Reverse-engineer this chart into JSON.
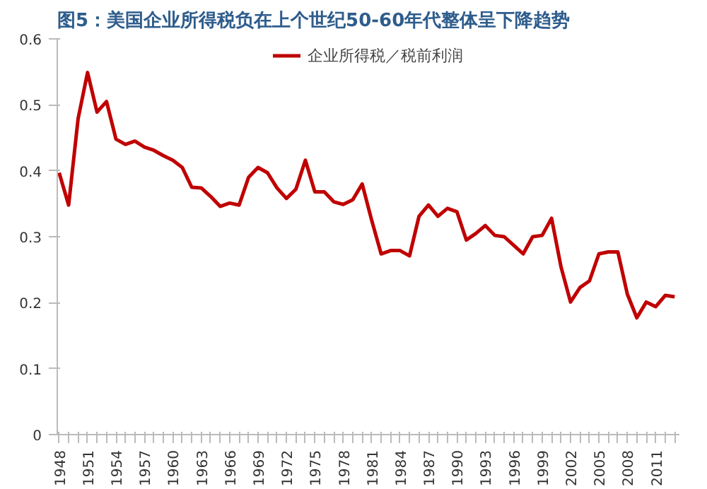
{
  "chart_data": {
    "type": "line",
    "title": "图5：美国企业所得税负在上个世纪50-60年代整体呈下降趋势",
    "categories": [
      "1948",
      null,
      null,
      "1951",
      null,
      null,
      "1954",
      null,
      null,
      "1957",
      null,
      null,
      "1960",
      null,
      null,
      "1963",
      null,
      null,
      "1966",
      null,
      null,
      "1969",
      null,
      null,
      "1972",
      null,
      null,
      "1975",
      null,
      null,
      "1978",
      null,
      null,
      "1981",
      null,
      null,
      "1984",
      null,
      null,
      "1987",
      null,
      null,
      "1990",
      null,
      null,
      "1993",
      null,
      null,
      "1996",
      null,
      null,
      "1999",
      null,
      null,
      "2002",
      null,
      null,
      "2005",
      null,
      null,
      "2008",
      null,
      null,
      "2011",
      null,
      null
    ],
    "series": [
      {
        "name": "企业所得税／税前利润",
        "color": "#c00000",
        "values": [
          0.397,
          0.348,
          0.479,
          0.549,
          0.489,
          0.505,
          0.448,
          0.44,
          0.445,
          0.436,
          0.431,
          0.423,
          0.416,
          0.405,
          0.375,
          0.374,
          0.361,
          0.346,
          0.351,
          0.348,
          0.39,
          0.405,
          0.397,
          0.374,
          0.358,
          0.372,
          0.416,
          0.368,
          0.368,
          0.353,
          0.349,
          0.356,
          0.38,
          0.325,
          0.274,
          0.279,
          0.279,
          0.271,
          0.331,
          0.348,
          0.331,
          0.343,
          0.338,
          0.295,
          0.305,
          0.317,
          0.302,
          0.3,
          0.287,
          0.274,
          0.3,
          0.302,
          0.328,
          0.254,
          0.201,
          0.223,
          0.233,
          0.274,
          0.277,
          0.277,
          0.213,
          0.177,
          0.201,
          0.194,
          0.211,
          0.209
        ]
      }
    ],
    "ylim": [
      0,
      0.6
    ],
    "yticks": [
      0,
      0.1,
      0.2,
      0.3,
      0.4,
      0.5,
      0.6
    ],
    "grid": false,
    "legend": "top",
    "line_style": "solid"
  }
}
